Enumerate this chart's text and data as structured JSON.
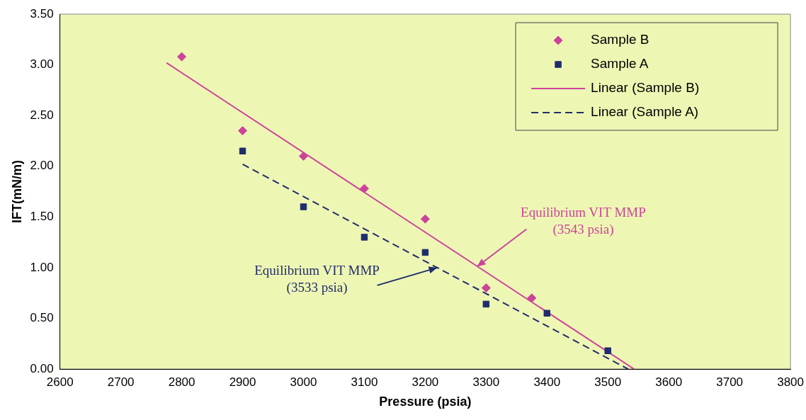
{
  "chart_data": {
    "type": "scatter",
    "xlabel": "Pressure (psia)",
    "ylabel": "IFT(mN/m)",
    "xlim": [
      2600,
      3800
    ],
    "xticks": [
      2600,
      2700,
      2800,
      2900,
      3000,
      3100,
      3200,
      3300,
      3400,
      3500,
      3600,
      3700,
      3800
    ],
    "ylim": [
      0,
      3.5
    ],
    "yticks": [
      {
        "value": 0,
        "label": "0.00"
      },
      {
        "value": 0.5,
        "label": "0.50"
      },
      {
        "value": 1,
        "label": "1.00"
      },
      {
        "value": 1.5,
        "label": "1.50"
      },
      {
        "value": 2,
        "label": "2.00"
      },
      {
        "value": 2.5,
        "label": "2.50"
      },
      {
        "value": 3,
        "label": "3.00"
      },
      {
        "value": 3.5,
        "label": "3.50"
      }
    ],
    "grid": false,
    "legend": "top right",
    "series": [
      {
        "name": "Sample B",
        "marker": "diamond",
        "color": "#cc4499",
        "x": [
          2800,
          2900,
          3000,
          3100,
          3200,
          3300,
          3375
        ],
        "values": [
          3.08,
          2.35,
          2.1,
          1.78,
          1.48,
          0.8,
          0.7
        ]
      },
      {
        "name": "Sample A",
        "marker": "square",
        "color": "#1f2d6b",
        "x": [
          2900,
          3000,
          3100,
          3200,
          3300,
          3400,
          3500
        ],
        "values": [
          2.15,
          1.6,
          1.3,
          1.15,
          0.64,
          0.55,
          0.18
        ]
      },
      {
        "name": "Linear (Sample B)",
        "type": "line",
        "marker": "none",
        "line_style": "solid",
        "color": "#cc4499",
        "x": [
          2775,
          3543
        ],
        "values": [
          3.02,
          0
        ]
      },
      {
        "name": "Linear (Sample A)",
        "type": "line",
        "marker": "none",
        "line_style": "dashed",
        "color": "#1f2d6b",
        "x": [
          2900,
          3533
        ],
        "values": [
          2.02,
          0
        ]
      }
    ],
    "annotations": [
      {
        "text": "Equilibrium VIT MMP\n(3543 psia)",
        "x": 3285,
        "y": 1.01
      },
      {
        "text": "Equilibrium VIT MMP\n(3533 psia)",
        "x": 3220,
        "y": 1.0
      }
    ]
  }
}
